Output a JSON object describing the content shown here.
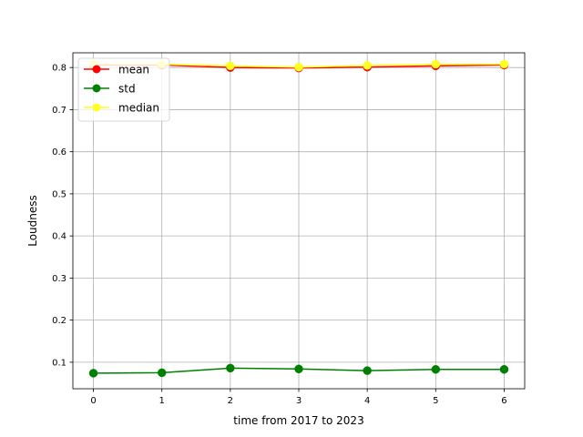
{
  "chart_data": {
    "type": "line",
    "title": "",
    "xlabel": "time from 2017 to 2023",
    "ylabel": "Loudness",
    "x": [
      0,
      1,
      2,
      3,
      4,
      5,
      6
    ],
    "xlim": [
      -0.3,
      6.3
    ],
    "ylim": [
      0.037,
      0.835
    ],
    "xticks": [
      0,
      1,
      2,
      3,
      4,
      5,
      6
    ],
    "yticks": [
      0.1,
      0.2,
      0.3,
      0.4,
      0.5,
      0.6,
      0.7,
      0.8
    ],
    "ytick_labels": [
      "0.1",
      "0.2",
      "0.3",
      "0.4",
      "0.5",
      "0.6",
      "0.7",
      "0.8"
    ],
    "grid": true,
    "legend_position": "upper-left",
    "series": [
      {
        "name": "mean",
        "color": "#ff0000",
        "values": [
          0.806,
          0.806,
          0.8,
          0.799,
          0.801,
          0.804,
          0.806
        ]
      },
      {
        "name": "std",
        "color": "#008000",
        "values": [
          0.074,
          0.075,
          0.086,
          0.084,
          0.08,
          0.083,
          0.083
        ]
      },
      {
        "name": "median",
        "color": "#ffff22",
        "values": [
          0.808,
          0.808,
          0.804,
          0.801,
          0.805,
          0.808,
          0.808
        ]
      }
    ]
  }
}
